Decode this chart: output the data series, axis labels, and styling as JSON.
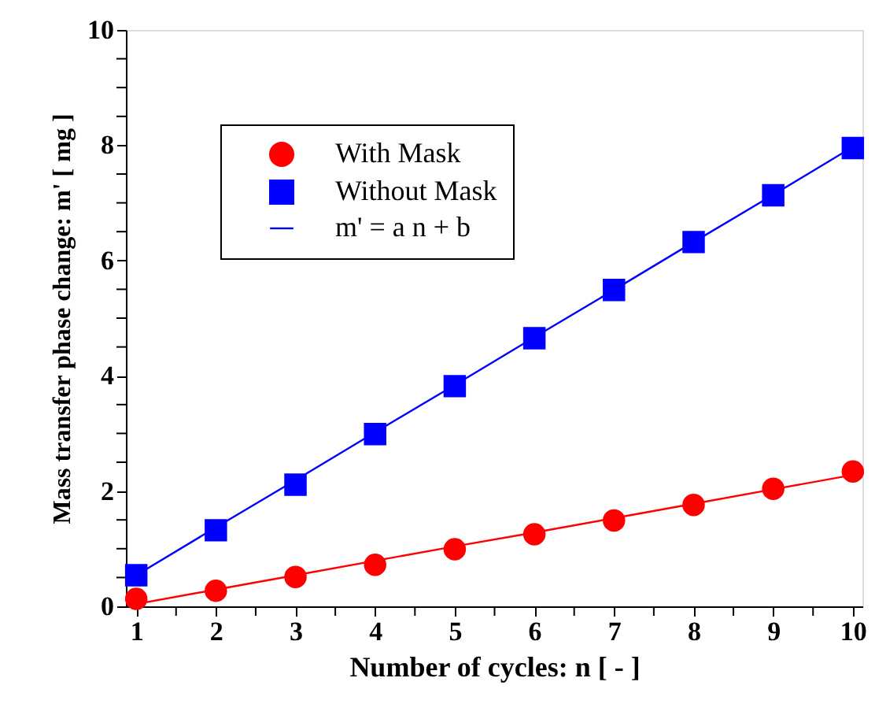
{
  "chart_data": {
    "type": "scatter",
    "xlabel": "Number of cycles: n [ - ]",
    "ylabel": "Mass transfer phase change: m' [ mg ]",
    "x": [
      1,
      2,
      3,
      4,
      5,
      6,
      7,
      8,
      9,
      10
    ],
    "series": [
      {
        "name": "With Mask",
        "color": "#ff0000",
        "marker": "circle",
        "values": [
          0.13,
          0.27,
          0.51,
          0.72,
          0.99,
          1.25,
          1.49,
          1.76,
          2.04,
          2.34
        ]
      },
      {
        "name": "Without Mask",
        "color": "#0000ff",
        "marker": "square",
        "values": [
          0.54,
          1.32,
          2.11,
          2.99,
          3.82,
          4.65,
          5.49,
          6.32,
          7.13,
          7.95
        ]
      },
      {
        "name": "m' = a n + b",
        "type": "line",
        "color": "#0000ff",
        "marker": "none",
        "values": [
          0.54,
          1.37,
          2.19,
          3.02,
          3.84,
          4.67,
          5.49,
          6.32,
          7.14,
          7.97
        ]
      },
      {
        "type": "line",
        "color": "#ff0000",
        "marker": "none",
        "values": [
          0.04,
          0.29,
          0.54,
          0.79,
          1.04,
          1.28,
          1.53,
          1.78,
          2.03,
          2.28
        ]
      }
    ],
    "xlim": [
      0.87,
      10.12
    ],
    "xticks": [
      1,
      {
        "value": 1.5,
        "label": null
      },
      2,
      {
        "value": 2.5,
        "label": null
      },
      3,
      {
        "value": 3.5,
        "label": null
      },
      4,
      {
        "value": 4.5,
        "label": null
      },
      5,
      {
        "value": 5.5,
        "label": null
      },
      6,
      {
        "value": 6.5,
        "label": null
      },
      7,
      {
        "value": 7.5,
        "label": null
      },
      8,
      {
        "value": 8.5,
        "label": null
      },
      9,
      {
        "value": 9.5,
        "label": null
      },
      10
    ],
    "ylim": [
      0,
      10
    ],
    "yticks": [
      0,
      {
        "value": 0.5,
        "label": null
      },
      {
        "value": 1,
        "label": null
      },
      {
        "value": 1.5,
        "label": null
      },
      2,
      {
        "value": 2.5,
        "label": null
      },
      {
        "value": 3,
        "label": null
      },
      {
        "value": 3.5,
        "label": null
      },
      4,
      {
        "value": 4.5,
        "label": null
      },
      {
        "value": 5,
        "label": null
      },
      {
        "value": 5.5,
        "label": null
      },
      6,
      {
        "value": 6.5,
        "label": null
      },
      {
        "value": 7,
        "label": null
      },
      {
        "value": 7.5,
        "label": null
      },
      8,
      {
        "value": 8.5,
        "label": null
      },
      {
        "value": 9,
        "label": null
      },
      {
        "value": 9.5,
        "label": null
      },
      10
    ],
    "grid": false,
    "legend": "top left"
  }
}
